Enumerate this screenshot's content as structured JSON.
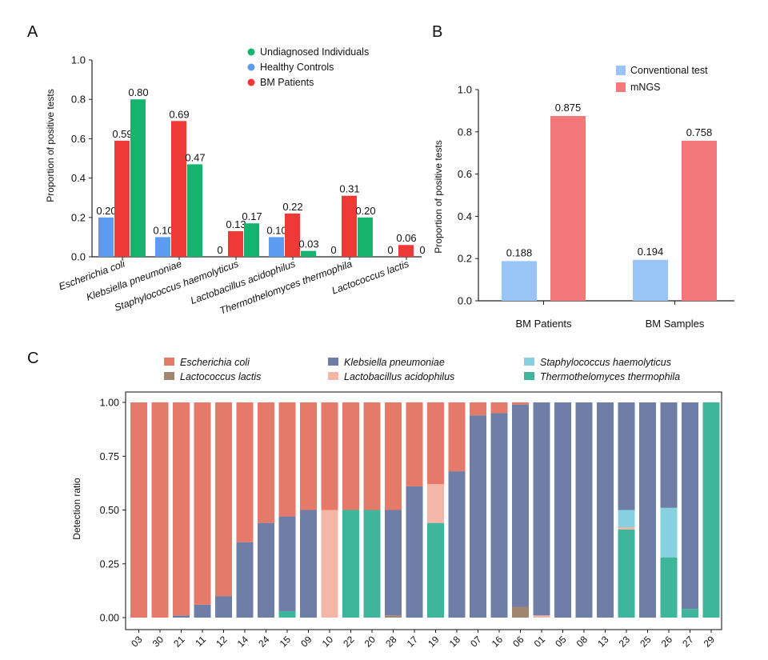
{
  "panel_labels": {
    "a": "A",
    "b": "B",
    "c": "C"
  },
  "colors": {
    "undiagnosed": "#16b36e",
    "healthy": "#5b9cf0",
    "bm": "#ee3a36",
    "conventional": "#98c4f6",
    "mngs": "#f4787a",
    "ecoli": "#e57a6a",
    "kpneu": "#6e7ea6",
    "staph": "#86d0df",
    "lacto_lactis": "#a28670",
    "lacto_acid": "#f4b6a6",
    "thermo": "#3fb59b"
  },
  "chart_data": [
    {
      "id": "A",
      "type": "bar",
      "title": "",
      "xlabel": "",
      "ylabel": "Proportion of positive tests",
      "ylim": [
        0,
        1.0
      ],
      "yticks": [
        "0.0",
        "0.2",
        "0.4",
        "0.6",
        "0.8",
        "1.0"
      ],
      "categories": [
        "Escherichia coli",
        "Klebsiella pneumoniae",
        "Staphylococcus haemolyticus",
        "Lactobacillus acidophilus",
        "Thermothelomyces thermophila",
        "Lactococcus lactis"
      ],
      "legend": [
        "Undiagnosed Individuals",
        "Healthy Controls",
        "BM Patients"
      ],
      "series": [
        {
          "name": "Healthy Controls",
          "values": [
            0.2,
            0.1,
            0,
            0.1,
            0,
            0
          ],
          "labels": [
            "0.20",
            "0.10",
            "0",
            "0.10",
            "0",
            "0"
          ]
        },
        {
          "name": "BM Patients",
          "values": [
            0.59,
            0.69,
            0.13,
            0.22,
            0.31,
            0.06
          ],
          "labels": [
            "0.59",
            "0.69",
            "0.13",
            "0.22",
            "0.31",
            "0.06"
          ]
        },
        {
          "name": "Undiagnosed Individuals",
          "values": [
            0.8,
            0.47,
            0.17,
            0.03,
            0.2,
            0
          ],
          "labels": [
            "0.80",
            "0.47",
            "0.17",
            "0.03",
            "0.20",
            "0"
          ]
        }
      ]
    },
    {
      "id": "B",
      "type": "bar",
      "title": "",
      "xlabel": "",
      "ylabel": "Proportion of positive tests",
      "ylim": [
        0,
        1.0
      ],
      "yticks": [
        "0.0",
        "0.2",
        "0.4",
        "0.6",
        "0.8",
        "1.0"
      ],
      "categories": [
        "BM Patients",
        "BM Samples"
      ],
      "legend": [
        "Conventional test",
        "mNGS"
      ],
      "series": [
        {
          "name": "Conventional test",
          "values": [
            0.188,
            0.194
          ],
          "labels": [
            "0.188",
            "0.194"
          ]
        },
        {
          "name": "mNGS",
          "values": [
            0.875,
            0.758
          ],
          "labels": [
            "0.875",
            "0.758"
          ]
        }
      ]
    },
    {
      "id": "C",
      "type": "bar",
      "stacked": true,
      "title": "",
      "xlabel": "",
      "ylabel": "Detection ratio",
      "ylim": [
        0,
        1.0
      ],
      "yticks": [
        "0.00",
        "0.25",
        "0.50",
        "0.75",
        "1.00"
      ],
      "legend": [
        "Escherichia coli",
        "Klebsiella pneumoniae",
        "Staphylococcus haemolyticus",
        "Lactococcus lactis",
        "Lactobacillus acidophilus",
        "Thermothelomyces thermophila"
      ],
      "categories": [
        "03",
        "30",
        "21",
        "11",
        "12",
        "14",
        "24",
        "15",
        "09",
        "10",
        "22",
        "20",
        "28",
        "17",
        "19",
        "18",
        "07",
        "16",
        "06",
        "01",
        "05",
        "08",
        "13",
        "23",
        "25",
        "26",
        "27",
        "29"
      ],
      "series": [
        {
          "name": "Lactococcus lactis",
          "values": [
            0,
            0,
            0,
            0,
            0,
            0,
            0,
            0,
            0,
            0,
            0,
            0,
            0.01,
            0,
            0,
            0,
            0,
            0,
            0.05,
            0,
            0,
            0,
            0,
            0,
            0,
            0,
            0,
            0
          ]
        },
        {
          "name": "Thermothelomyces thermophila",
          "values": [
            0,
            0,
            0,
            0,
            0,
            0,
            0,
            0.03,
            0,
            0,
            0.5,
            0.5,
            0,
            0,
            0.44,
            0,
            0,
            0,
            0,
            0,
            0,
            0,
            0,
            0.41,
            0,
            0.28,
            0.04,
            1.0
          ]
        },
        {
          "name": "Lactobacillus acidophilus",
          "values": [
            0,
            0,
            0,
            0,
            0,
            0,
            0,
            0,
            0,
            0.5,
            0,
            0,
            0,
            0,
            0.18,
            0,
            0,
            0,
            0,
            0.01,
            0,
            0,
            0,
            0.01,
            0,
            0,
            0,
            0
          ]
        },
        {
          "name": "Staphylococcus haemolyticus",
          "values": [
            0,
            0,
            0,
            0,
            0,
            0,
            0,
            0,
            0,
            0,
            0,
            0,
            0,
            0,
            0,
            0,
            0,
            0,
            0,
            0,
            0,
            0,
            0,
            0.08,
            0,
            0.23,
            0,
            0
          ]
        },
        {
          "name": "Klebsiella pneumoniae",
          "values": [
            0,
            0,
            0.01,
            0.06,
            0.1,
            0.35,
            0.44,
            0.44,
            0.5,
            0,
            0,
            0,
            0.49,
            0.61,
            0,
            0.68,
            0.94,
            0.95,
            0.94,
            0.99,
            1.0,
            1.0,
            1.0,
            0.5,
            1.0,
            0.49,
            0.96,
            0
          ]
        },
        {
          "name": "Escherichia coli",
          "values": [
            1.0,
            1.0,
            0.99,
            0.94,
            0.9,
            0.65,
            0.56,
            0.53,
            0.5,
            0.5,
            0.5,
            0.5,
            0.5,
            0.39,
            0.38,
            0.32,
            0.06,
            0.05,
            0.01,
            0,
            0,
            0,
            0,
            0,
            0,
            0,
            0,
            0
          ]
        }
      ]
    }
  ]
}
